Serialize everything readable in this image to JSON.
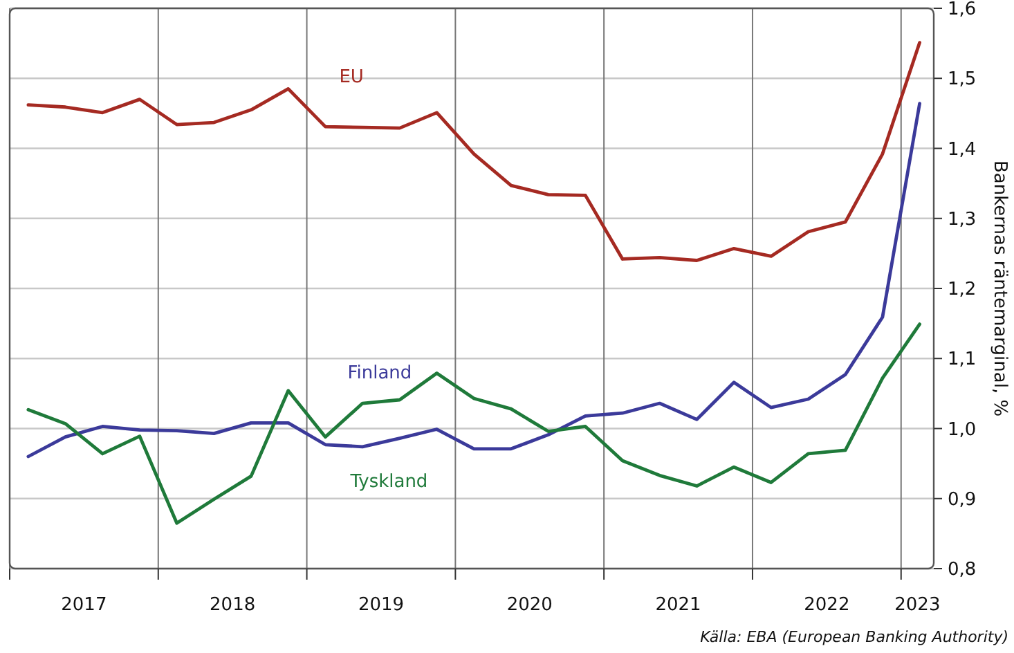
{
  "chart_data": {
    "type": "line",
    "ylabel": "Bankernas räntemarginal, %",
    "x": [
      2017.125,
      2017.375,
      2017.625,
      2017.875,
      2018.125,
      2018.375,
      2018.625,
      2018.875,
      2019.125,
      2019.375,
      2019.625,
      2019.875,
      2020.125,
      2020.375,
      2020.625,
      2020.875,
      2021.125,
      2021.375,
      2021.625,
      2021.875,
      2022.125,
      2022.375,
      2022.625,
      2022.875,
      2023.125
    ],
    "series": [
      {
        "name": "EU",
        "color": "#a52a22",
        "values": [
          1.462,
          1.459,
          1.451,
          1.47,
          1.434,
          1.437,
          1.455,
          1.485,
          1.431,
          1.43,
          1.429,
          1.451,
          1.392,
          1.347,
          1.334,
          1.333,
          1.242,
          1.244,
          1.24,
          1.257,
          1.246,
          1.281,
          1.295,
          1.392,
          1.551
        ]
      },
      {
        "name": "Finland",
        "color": "#3b3a9a",
        "values": [
          0.96,
          0.988,
          1.003,
          0.998,
          0.997,
          0.993,
          1.008,
          1.008,
          0.977,
          0.974,
          0.986,
          0.999,
          0.971,
          0.971,
          0.991,
          1.018,
          1.022,
          1.036,
          1.013,
          1.066,
          1.03,
          1.042,
          1.077,
          1.159,
          1.464
        ]
      },
      {
        "name": "Tyskland",
        "color": "#1f7a3a",
        "values": [
          1.027,
          1.007,
          0.964,
          0.989,
          0.865,
          0.899,
          0.932,
          1.054,
          0.988,
          1.036,
          1.041,
          1.079,
          1.043,
          1.028,
          0.996,
          1.003,
          0.954,
          0.933,
          0.918,
          0.945,
          0.923,
          0.964,
          0.969,
          1.072,
          1.149
        ]
      }
    ],
    "xlim": [
      2017,
      2023.22
    ],
    "xticks": [
      {
        "value": 2017,
        "label": null
      },
      {
        "value": 2017.5,
        "label": "2017"
      },
      {
        "value": 2018,
        "label": null
      },
      {
        "value": 2018.5,
        "label": "2018"
      },
      {
        "value": 2019,
        "label": null
      },
      {
        "value": 2019.5,
        "label": "2019"
      },
      {
        "value": 2020,
        "label": null
      },
      {
        "value": 2020.5,
        "label": "2020"
      },
      {
        "value": 2021,
        "label": null
      },
      {
        "value": 2021.5,
        "label": "2021"
      },
      {
        "value": 2022,
        "label": null
      },
      {
        "value": 2022.5,
        "label": "2022"
      },
      {
        "value": 2023,
        "label": null
      },
      {
        "value": 2023.11,
        "label": "2023"
      }
    ],
    "ylim": [
      0.8,
      1.6
    ],
    "yticks": [
      {
        "value": 0.8,
        "label": "0,8"
      },
      {
        "value": 0.9,
        "label": "0,9"
      },
      {
        "value": 1.0,
        "label": "1,0"
      },
      {
        "value": 1.1,
        "label": "1,1"
      },
      {
        "value": 1.2,
        "label": "1,2"
      },
      {
        "value": 1.3,
        "label": "1,3"
      },
      {
        "value": 1.4,
        "label": "1,4"
      },
      {
        "value": 1.5,
        "label": "1,5"
      },
      {
        "value": 1.6,
        "label": "1,6"
      }
    ],
    "grid": true,
    "line_style": "solid",
    "annotations": [
      "Källa: EBA (European Banking Authority)"
    ]
  }
}
